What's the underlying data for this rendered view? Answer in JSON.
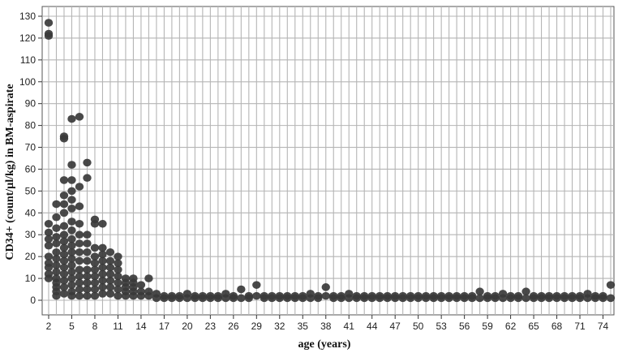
{
  "chart_data": {
    "type": "scatter",
    "title": "",
    "xlabel": "age (years)",
    "ylabel": "CD34+ (count/µl/kg) in BM-aspirate",
    "xlim": [
      2,
      75
    ],
    "ylim": [
      0,
      130
    ],
    "x_ticks": [
      2,
      5,
      8,
      11,
      14,
      17,
      20,
      23,
      26,
      29,
      32,
      35,
      38,
      41,
      44,
      47,
      50,
      53,
      56,
      59,
      62,
      65,
      68,
      71,
      74
    ],
    "y_ticks": [
      0,
      10,
      20,
      30,
      40,
      50,
      60,
      70,
      80,
      90,
      100,
      110,
      120,
      130
    ],
    "grid": true,
    "marker_color": "#3a3a3a",
    "series": [
      {
        "points": [
          [
            2,
            127
          ],
          [
            2,
            122
          ],
          [
            2,
            121
          ],
          [
            2,
            35
          ],
          [
            2,
            31
          ],
          [
            2,
            28
          ],
          [
            2,
            25
          ],
          [
            2,
            20
          ],
          [
            2,
            17
          ],
          [
            2,
            15
          ],
          [
            2,
            12
          ],
          [
            2,
            10
          ],
          [
            3,
            44
          ],
          [
            3,
            38
          ],
          [
            3,
            33
          ],
          [
            3,
            29
          ],
          [
            3,
            26
          ],
          [
            3,
            22
          ],
          [
            3,
            19
          ],
          [
            3,
            16
          ],
          [
            3,
            13
          ],
          [
            3,
            10
          ],
          [
            3,
            8
          ],
          [
            3,
            6
          ],
          [
            3,
            4
          ],
          [
            3,
            2
          ],
          [
            4,
            75
          ],
          [
            4,
            74
          ],
          [
            4,
            55
          ],
          [
            4,
            48
          ],
          [
            4,
            44
          ],
          [
            4,
            40
          ],
          [
            4,
            34
          ],
          [
            4,
            30
          ],
          [
            4,
            27
          ],
          [
            4,
            24
          ],
          [
            4,
            21
          ],
          [
            4,
            18
          ],
          [
            4,
            15
          ],
          [
            4,
            12
          ],
          [
            4,
            9
          ],
          [
            4,
            6
          ],
          [
            4,
            3
          ],
          [
            5,
            83
          ],
          [
            5,
            62
          ],
          [
            5,
            55
          ],
          [
            5,
            50
          ],
          [
            5,
            46
          ],
          [
            5,
            42
          ],
          [
            5,
            36
          ],
          [
            5,
            32
          ],
          [
            5,
            28
          ],
          [
            5,
            25
          ],
          [
            5,
            22
          ],
          [
            5,
            19
          ],
          [
            5,
            16
          ],
          [
            5,
            13
          ],
          [
            5,
            10
          ],
          [
            5,
            7
          ],
          [
            5,
            4
          ],
          [
            5,
            2
          ],
          [
            6,
            84
          ],
          [
            6,
            52
          ],
          [
            6,
            43
          ],
          [
            6,
            35
          ],
          [
            6,
            30
          ],
          [
            6,
            26
          ],
          [
            6,
            22
          ],
          [
            6,
            18
          ],
          [
            6,
            14
          ],
          [
            6,
            11
          ],
          [
            6,
            8
          ],
          [
            6,
            5
          ],
          [
            6,
            2
          ],
          [
            7,
            63
          ],
          [
            7,
            56
          ],
          [
            7,
            30
          ],
          [
            7,
            26
          ],
          [
            7,
            22
          ],
          [
            7,
            18
          ],
          [
            7,
            14
          ],
          [
            7,
            11
          ],
          [
            7,
            8
          ],
          [
            7,
            5
          ],
          [
            7,
            2
          ],
          [
            8,
            37
          ],
          [
            8,
            35
          ],
          [
            8,
            24
          ],
          [
            8,
            20
          ],
          [
            8,
            17
          ],
          [
            8,
            14
          ],
          [
            8,
            11
          ],
          [
            8,
            8
          ],
          [
            8,
            5
          ],
          [
            8,
            2
          ],
          [
            9,
            35
          ],
          [
            9,
            24
          ],
          [
            9,
            21
          ],
          [
            9,
            18
          ],
          [
            9,
            15
          ],
          [
            9,
            12
          ],
          [
            9,
            9
          ],
          [
            9,
            6
          ],
          [
            9,
            3
          ],
          [
            10,
            22
          ],
          [
            10,
            18
          ],
          [
            10,
            15
          ],
          [
            10,
            12
          ],
          [
            10,
            9
          ],
          [
            10,
            6
          ],
          [
            10,
            3
          ],
          [
            11,
            20
          ],
          [
            11,
            17
          ],
          [
            11,
            14
          ],
          [
            11,
            11
          ],
          [
            11,
            8
          ],
          [
            11,
            5
          ],
          [
            11,
            2
          ],
          [
            12,
            10
          ],
          [
            12,
            8
          ],
          [
            12,
            6
          ],
          [
            12,
            4
          ],
          [
            12,
            2
          ],
          [
            13,
            10
          ],
          [
            13,
            8
          ],
          [
            13,
            6
          ],
          [
            13,
            4
          ],
          [
            13,
            2
          ],
          [
            14,
            7
          ],
          [
            14,
            4
          ],
          [
            14,
            2
          ],
          [
            15,
            10
          ],
          [
            15,
            4
          ],
          [
            15,
            2
          ],
          [
            16,
            3
          ],
          [
            16,
            1
          ],
          [
            17,
            2
          ],
          [
            17,
            1
          ],
          [
            18,
            2
          ],
          [
            18,
            1
          ],
          [
            19,
            2
          ],
          [
            19,
            1
          ],
          [
            20,
            3
          ],
          [
            20,
            1
          ],
          [
            21,
            2
          ],
          [
            21,
            1
          ],
          [
            22,
            2
          ],
          [
            22,
            1
          ],
          [
            23,
            2
          ],
          [
            23,
            1
          ],
          [
            24,
            2
          ],
          [
            24,
            1
          ],
          [
            25,
            3
          ],
          [
            25,
            1
          ],
          [
            26,
            2
          ],
          [
            26,
            1
          ],
          [
            27,
            5
          ],
          [
            27,
            1
          ],
          [
            28,
            2
          ],
          [
            28,
            1
          ],
          [
            29,
            7
          ],
          [
            29,
            2
          ],
          [
            30,
            2
          ],
          [
            30,
            1
          ],
          [
            31,
            2
          ],
          [
            31,
            1
          ],
          [
            32,
            2
          ],
          [
            32,
            1
          ],
          [
            33,
            2
          ],
          [
            33,
            1
          ],
          [
            34,
            2
          ],
          [
            34,
            1
          ],
          [
            35,
            2
          ],
          [
            35,
            1
          ],
          [
            36,
            3
          ],
          [
            36,
            1
          ],
          [
            37,
            2
          ],
          [
            37,
            1
          ],
          [
            38,
            6
          ],
          [
            38,
            2
          ],
          [
            39,
            2
          ],
          [
            39,
            1
          ],
          [
            40,
            2
          ],
          [
            40,
            1
          ],
          [
            41,
            3
          ],
          [
            41,
            1
          ],
          [
            42,
            2
          ],
          [
            42,
            1
          ],
          [
            43,
            2
          ],
          [
            43,
            1
          ],
          [
            44,
            2
          ],
          [
            44,
            1
          ],
          [
            45,
            2
          ],
          [
            45,
            1
          ],
          [
            46,
            2
          ],
          [
            46,
            1
          ],
          [
            47,
            2
          ],
          [
            47,
            1
          ],
          [
            48,
            2
          ],
          [
            48,
            1
          ],
          [
            49,
            2
          ],
          [
            49,
            1
          ],
          [
            50,
            2
          ],
          [
            50,
            1
          ],
          [
            51,
            2
          ],
          [
            51,
            1
          ],
          [
            52,
            2
          ],
          [
            52,
            1
          ],
          [
            53,
            2
          ],
          [
            53,
            1
          ],
          [
            54,
            2
          ],
          [
            54,
            1
          ],
          [
            55,
            2
          ],
          [
            55,
            1
          ],
          [
            56,
            2
          ],
          [
            56,
            1
          ],
          [
            57,
            2
          ],
          [
            57,
            1
          ],
          [
            58,
            4
          ],
          [
            58,
            1
          ],
          [
            59,
            2
          ],
          [
            59,
            1
          ],
          [
            60,
            2
          ],
          [
            60,
            1
          ],
          [
            61,
            3
          ],
          [
            61,
            1
          ],
          [
            62,
            2
          ],
          [
            62,
            1
          ],
          [
            63,
            2
          ],
          [
            63,
            1
          ],
          [
            64,
            4
          ],
          [
            64,
            1
          ],
          [
            65,
            2
          ],
          [
            65,
            1
          ],
          [
            66,
            2
          ],
          [
            66,
            1
          ],
          [
            67,
            2
          ],
          [
            67,
            1
          ],
          [
            68,
            2
          ],
          [
            68,
            1
          ],
          [
            69,
            2
          ],
          [
            69,
            1
          ],
          [
            70,
            2
          ],
          [
            70,
            1
          ],
          [
            71,
            2
          ],
          [
            71,
            1
          ],
          [
            72,
            3
          ],
          [
            72,
            1
          ],
          [
            73,
            2
          ],
          [
            73,
            1
          ],
          [
            74,
            2
          ],
          [
            74,
            1
          ],
          [
            75,
            7
          ],
          [
            75,
            1
          ]
        ]
      }
    ]
  }
}
